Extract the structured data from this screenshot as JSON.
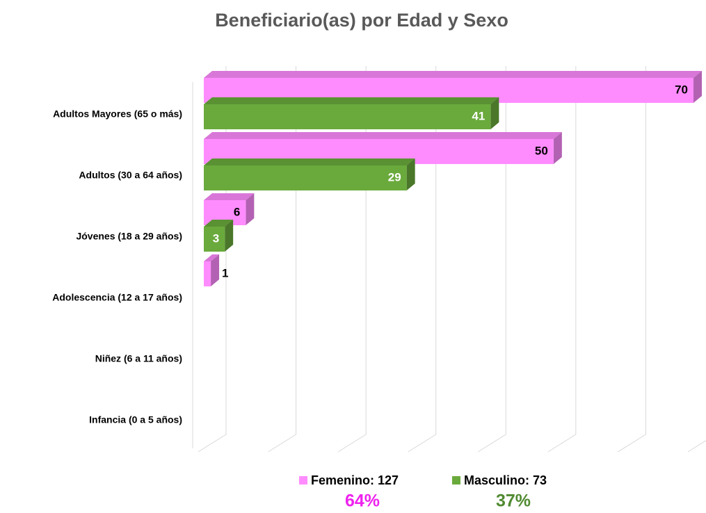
{
  "chart_data": {
    "type": "bar3d_horizontal",
    "title": "Beneficiario(as) por Edad y Sexo",
    "categories": [
      "Adultos Mayores (65 o más)",
      "Adultos (30 a 64 años)",
      "Jóvenes (18 a 29 años)",
      "Adolescencia (12 a 17 años)",
      "Niñez (6 a 11 años)",
      "Infancia (0 a 5 años)"
    ],
    "series": [
      {
        "name": "Femenino: 127",
        "color": "#ff8cff",
        "label_color": "#000000",
        "values": [
          70,
          50,
          6,
          1,
          null,
          null
        ],
        "share": 64,
        "share_label": "64%",
        "share_color": "#ee22ee"
      },
      {
        "name": "Masculino: 73",
        "color": "#6aaa3c",
        "label_color": "#ffffff",
        "values": [
          41,
          29,
          3,
          null,
          null,
          null
        ],
        "share": 37,
        "share_label": "37%",
        "share_color": "#4f8a30"
      }
    ],
    "xlim": [
      0,
      70
    ],
    "xticks": [
      0,
      10,
      20,
      30,
      40,
      50,
      60,
      70
    ],
    "grid": true
  }
}
